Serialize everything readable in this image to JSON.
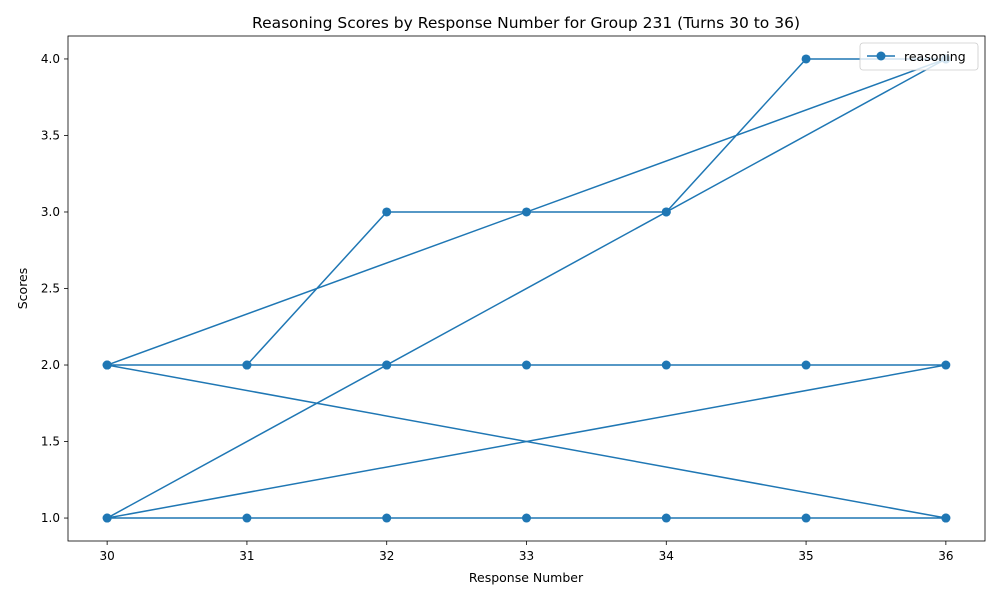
{
  "chart_data": {
    "type": "line",
    "title": "Reasoning Scores by Response Number for Group 231 (Turns 30 to 36)",
    "xlabel": "Response Number",
    "ylabel": "Scores",
    "xlim": [
      29.72,
      36.28
    ],
    "ylim": [
      0.85,
      4.15
    ],
    "x_ticks": [
      "30",
      "31",
      "32",
      "33",
      "34",
      "35",
      "36"
    ],
    "y_ticks": [
      "1.0",
      "1.5",
      "2.0",
      "2.5",
      "3.0",
      "3.5",
      "4.0"
    ],
    "grid": false,
    "legend": {
      "position": "top-right",
      "entries": [
        "reasoning"
      ]
    },
    "color": "#1f77b4",
    "series": [
      {
        "name": "reasoning",
        "points": [
          [
            30,
            2
          ],
          [
            31,
            2
          ],
          [
            32,
            3
          ],
          [
            33,
            3
          ],
          [
            34,
            3
          ],
          [
            35,
            4
          ],
          [
            36,
            4
          ],
          [
            30,
            1
          ],
          [
            31,
            1
          ],
          [
            32,
            1
          ],
          [
            33,
            1
          ],
          [
            34,
            1
          ],
          [
            35,
            1
          ],
          [
            36,
            1
          ],
          [
            30,
            2
          ],
          [
            31,
            2
          ],
          [
            32,
            2
          ],
          [
            33,
            2
          ],
          [
            34,
            2
          ],
          [
            35,
            2
          ],
          [
            36,
            2
          ],
          [
            30,
            1
          ],
          [
            32,
            2
          ],
          [
            34,
            3
          ],
          [
            36,
            4
          ],
          [
            30,
            2
          ],
          [
            36,
            1
          ]
        ]
      }
    ]
  }
}
